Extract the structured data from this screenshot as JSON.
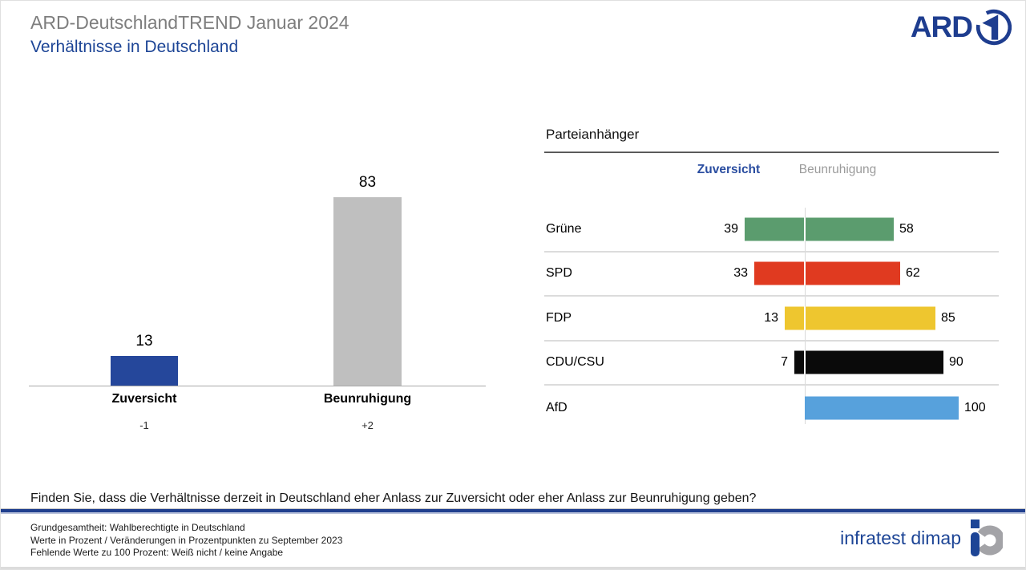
{
  "header": {
    "title": "ARD-DeutschlandTREND Januar 2024",
    "subtitle": "Verhältnisse in Deutschland",
    "ard_logo_text": "ARD"
  },
  "colors": {
    "navy": "#1e3d8f",
    "subtitle_blue": "#1d4596",
    "title_gray": "#7e7e7e",
    "bar_blue": "#25479b",
    "bar_gray": "#bfbfbf",
    "gruene_green": "#5b9c6e",
    "spd_red": "#e03a20",
    "fdp_yellow": "#eec62f",
    "cdu_black": "#0a0a0a",
    "afd_blue": "#57a1dc"
  },
  "chart_data": [
    {
      "type": "bar",
      "title": "",
      "categories": [
        "Zuversicht",
        "Beunruhigung"
      ],
      "values": [
        13,
        83
      ],
      "changes": [
        "-1",
        "+2"
      ],
      "bar_colors": [
        "#25479b",
        "#bfbfbf"
      ],
      "ylim": [
        0,
        100
      ],
      "grid": false,
      "value_labels": true
    },
    {
      "type": "bar",
      "title": "Parteianhänger",
      "col_headers": [
        "Zuversicht",
        "Beunruhigung"
      ],
      "categories": [
        "Grüne",
        "SPD",
        "FDP",
        "CDU/CSU",
        "AfD"
      ],
      "series": [
        {
          "name": "Zuversicht",
          "values": [
            39,
            33,
            13,
            7,
            null
          ]
        },
        {
          "name": "Beunruhigung",
          "values": [
            58,
            62,
            85,
            90,
            100
          ]
        }
      ],
      "bar_colors": [
        "#5b9c6e",
        "#e03a20",
        "#eec62f",
        "#0a0a0a",
        "#57a1dc"
      ],
      "xlim": [
        0,
        100
      ],
      "legend_position": "top"
    }
  ],
  "question": "Finden Sie, dass die Verhältnisse derzeit in Deutschland eher Anlass zur Zuversicht oder eher Anlass zur Beunruhigung geben?",
  "footer": {
    "lines": [
      "Grundgesamtheit: Wahlberechtigte in Deutschland",
      "Werte in Prozent / Veränderungen in Prozentpunkten zu September 2023",
      "Fehlende Werte zu 100 Prozent: Weiß nicht / keine Angabe"
    ],
    "brand": "infratest dimap"
  }
}
